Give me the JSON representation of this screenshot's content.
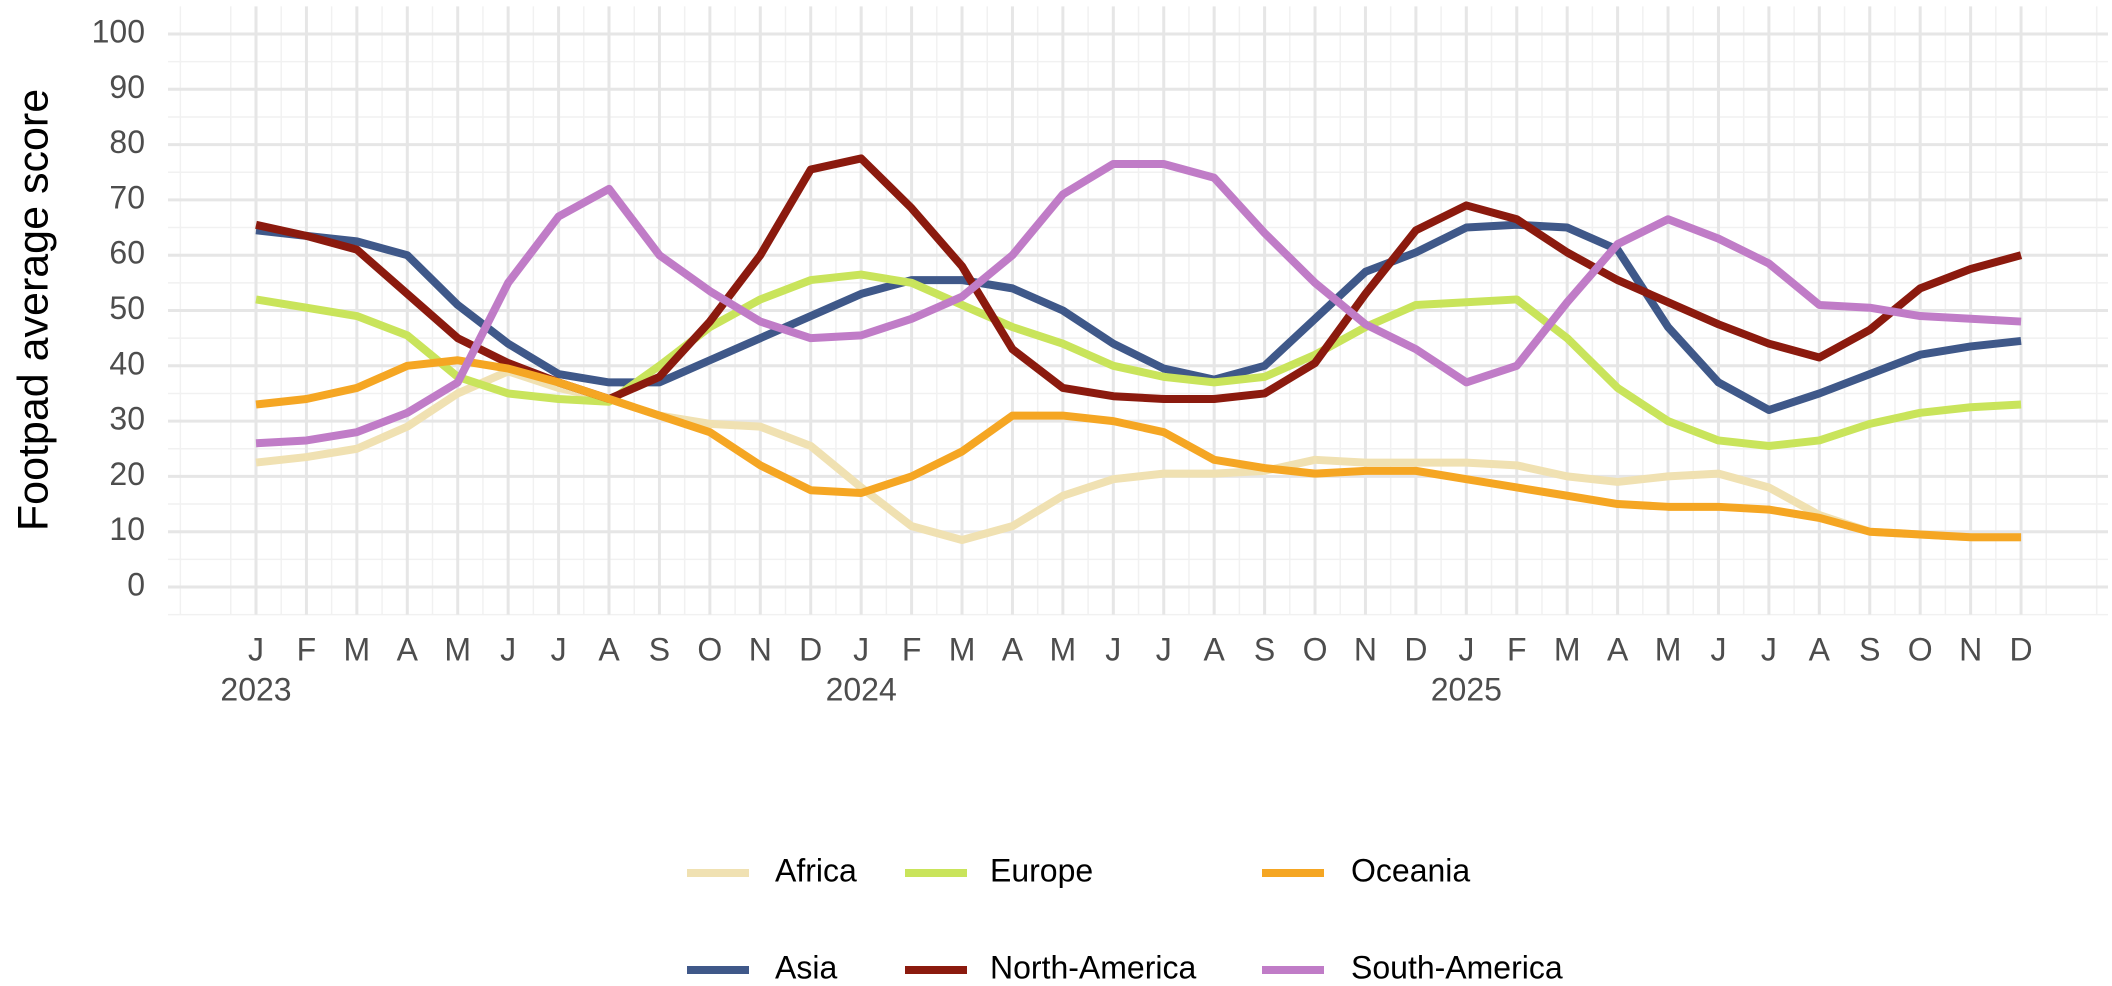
{
  "chart_data": {
    "type": "line",
    "y_label": "Footpad average score",
    "x": [
      "2023-01",
      "2023-02",
      "2023-03",
      "2023-04",
      "2023-05",
      "2023-06",
      "2023-07",
      "2023-08",
      "2023-09",
      "2023-10",
      "2023-11",
      "2023-12",
      "2024-01",
      "2024-02",
      "2024-03",
      "2024-04",
      "2024-05",
      "2024-06",
      "2024-07",
      "2024-08",
      "2024-09",
      "2024-10",
      "2024-11",
      "2024-12",
      "2025-01",
      "2025-02",
      "2025-03",
      "2025-04",
      "2025-05",
      "2025-06",
      "2025-07",
      "2025-08",
      "2025-09",
      "2025-10",
      "2025-11",
      "2025-12"
    ],
    "xticks": [
      {
        "value": "2023-01",
        "label": "J"
      },
      {
        "value": "2023-02",
        "label": "F"
      },
      {
        "value": "2023-03",
        "label": "M"
      },
      {
        "value": "2023-04",
        "label": "A"
      },
      {
        "value": "2023-05",
        "label": "M"
      },
      {
        "value": "2023-06",
        "label": "J"
      },
      {
        "value": "2023-07",
        "label": "J"
      },
      {
        "value": "2023-08",
        "label": "A"
      },
      {
        "value": "2023-09",
        "label": "S"
      },
      {
        "value": "2023-10",
        "label": "O"
      },
      {
        "value": "2023-11",
        "label": "N"
      },
      {
        "value": "2023-12",
        "label": "D"
      },
      {
        "value": "2024-01",
        "label": "J"
      },
      {
        "value": "2024-02",
        "label": "F"
      },
      {
        "value": "2024-03",
        "label": "M"
      },
      {
        "value": "2024-04",
        "label": "A"
      },
      {
        "value": "2024-05",
        "label": "M"
      },
      {
        "value": "2024-06",
        "label": "J"
      },
      {
        "value": "2024-07",
        "label": "J"
      },
      {
        "value": "2024-08",
        "label": "A"
      },
      {
        "value": "2024-09",
        "label": "S"
      },
      {
        "value": "2024-10",
        "label": "O"
      },
      {
        "value": "2024-11",
        "label": "N"
      },
      {
        "value": "2024-12",
        "label": "D"
      },
      {
        "value": "2025-01",
        "label": "J"
      },
      {
        "value": "2025-02",
        "label": "F"
      },
      {
        "value": "2025-03",
        "label": "M"
      },
      {
        "value": "2025-04",
        "label": "A"
      },
      {
        "value": "2025-05",
        "label": "M"
      },
      {
        "value": "2025-06",
        "label": "J"
      },
      {
        "value": "2025-07",
        "label": "J"
      },
      {
        "value": "2025-08",
        "label": "A"
      },
      {
        "value": "2025-09",
        "label": "S"
      },
      {
        "value": "2025-10",
        "label": "O"
      },
      {
        "value": "2025-11",
        "label": "N"
      },
      {
        "value": "2025-12",
        "label": "D"
      }
    ],
    "xtick_years": [
      {
        "value": "2023-01",
        "label": "2023"
      },
      {
        "value": "2024-01",
        "label": "2024"
      },
      {
        "value": "2025-01",
        "label": "2025"
      }
    ],
    "ylim": [
      0,
      100
    ],
    "yticks": [
      0,
      10,
      20,
      30,
      40,
      50,
      60,
      70,
      80,
      90,
      100
    ],
    "grid": true,
    "legend": "bottom",
    "series": [
      {
        "name": "Africa",
        "color": "#f0e1b2",
        "values": [
          22.5,
          23.5,
          25,
          29,
          35,
          39,
          36,
          34,
          31,
          29.5,
          29,
          25.5,
          18,
          11,
          8.5,
          11,
          16.5,
          19.5,
          20.5,
          20.5,
          21,
          23,
          22.5,
          22.5,
          22.5,
          22,
          20,
          19,
          20,
          20.5,
          18,
          13,
          10,
          9.5,
          9,
          9
        ]
      },
      {
        "name": "Asia",
        "color": "#3f5889",
        "values": [
          64.5,
          63.5,
          62.5,
          60,
          51,
          44,
          38.5,
          37,
          37,
          41,
          45,
          49,
          53,
          55.5,
          55.5,
          54,
          50,
          44,
          39.5,
          37.5,
          40,
          48.5,
          57,
          60.5,
          65,
          65.5,
          65,
          61,
          47,
          37,
          32,
          35,
          38.5,
          42,
          43.5,
          44.5
        ]
      },
      {
        "name": "Europe",
        "color": "#c9e45b",
        "values": [
          52,
          50.5,
          49,
          45.5,
          38,
          35,
          34,
          33.5,
          40,
          47,
          52,
          55.5,
          56.5,
          55,
          51,
          47,
          44,
          40,
          38,
          37,
          38,
          42,
          47,
          51,
          51.5,
          52,
          45,
          36,
          30,
          26.5,
          25.5,
          26.5,
          29.5,
          31.5,
          32.5,
          33
        ]
      },
      {
        "name": "North-America",
        "color": "#8b1a0e",
        "values": [
          65.5,
          63.5,
          61,
          53,
          45,
          40.5,
          37,
          34,
          38,
          48,
          60,
          75.5,
          77.5,
          68.5,
          58,
          43,
          36,
          34.5,
          34,
          34,
          35,
          40.5,
          53,
          64.5,
          69,
          66.5,
          60.5,
          55.5,
          51.5,
          47.5,
          44,
          41.5,
          46.5,
          54,
          57.5,
          60
        ]
      },
      {
        "name": "Oceania",
        "color": "#f5a623",
        "values": [
          33,
          34,
          36,
          40,
          41,
          39.5,
          37,
          34,
          31,
          28,
          22,
          17.5,
          17,
          20,
          24.5,
          31,
          31,
          30,
          28,
          23,
          21.5,
          20.5,
          21,
          21,
          19.5,
          18,
          16.5,
          15,
          14.5,
          14.5,
          14,
          12.5,
          10,
          9.5,
          9,
          9
        ]
      },
      {
        "name": "South-America",
        "color": "#c07cc7",
        "values": [
          26,
          26.5,
          28,
          31.5,
          37,
          55,
          67,
          72,
          60,
          53.5,
          48,
          45,
          45.5,
          48.5,
          52.5,
          60,
          71,
          76.5,
          76.5,
          74,
          64,
          55,
          47.5,
          43,
          37,
          40,
          51.5,
          62,
          66.5,
          63,
          58.5,
          51,
          50.5,
          49,
          48.5,
          48
        ]
      }
    ]
  }
}
